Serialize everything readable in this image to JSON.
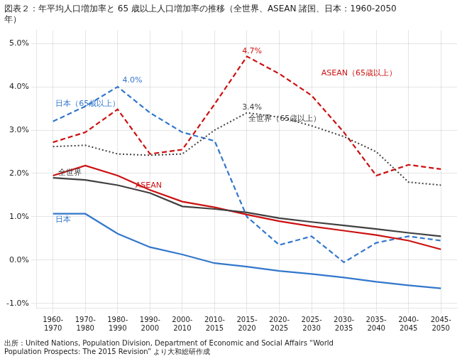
{
  "chart_data": {
    "type": "line",
    "title": [
      "図表２：年平均人口増加率と 65 歳以上人口増加率の推移（全世界、ASEAN 諸国、日本：1960-2050",
      "年）"
    ],
    "source": [
      "出所：United Nations, Population Division, Department of Economic and Social Affairs “World",
      "Population Prospects: The 2015 Revision” より大和総研作成"
    ],
    "categories": [
      [
        "1960-",
        "1970"
      ],
      [
        "1970-",
        "1980"
      ],
      [
        "1980-",
        "1990"
      ],
      [
        "1990-",
        "2000"
      ],
      [
        "2000-",
        "2010"
      ],
      [
        "2010-",
        "2015"
      ],
      [
        "2015-",
        "2020"
      ],
      [
        "2020-",
        "2025"
      ],
      [
        "2025-",
        "2030"
      ],
      [
        "2030-",
        "2035"
      ],
      [
        "2035-",
        "2040"
      ],
      [
        "2040-",
        "2045"
      ],
      [
        "2045-",
        "2050"
      ]
    ],
    "series": [
      {
        "name": "全世界",
        "color": "#404040",
        "line_style": "solid",
        "values": [
          1.9,
          1.85,
          1.73,
          1.55,
          1.24,
          1.18,
          1.1,
          0.97,
          0.88,
          0.8,
          0.72,
          0.63,
          0.55
        ]
      },
      {
        "name": "ASEAN",
        "color": "#cc1111",
        "line_style": "solid",
        "values": [
          1.95,
          2.18,
          1.95,
          1.62,
          1.35,
          1.22,
          1.05,
          0.9,
          0.78,
          0.68,
          0.58,
          0.45,
          0.25
        ]
      },
      {
        "name": "日本",
        "color": "#3377cc",
        "line_style": "solid",
        "values": [
          1.07,
          1.07,
          0.61,
          0.3,
          0.13,
          -0.07,
          -0.15,
          -0.25,
          -0.32,
          -0.4,
          -0.5,
          -0.58,
          -0.65
        ]
      },
      {
        "name": "全世界（65歳以上）",
        "color": "#404040",
        "line_style": "dotted",
        "values": [
          2.62,
          2.65,
          2.45,
          2.42,
          2.45,
          3.0,
          3.4,
          3.3,
          3.1,
          2.85,
          2.5,
          1.8,
          1.73
        ]
      },
      {
        "name": "ASEAN（65歳以上）",
        "color": "#cc1111",
        "line_style": "dashed",
        "values": [
          2.72,
          2.95,
          3.48,
          2.45,
          2.55,
          3.6,
          4.7,
          4.3,
          3.8,
          2.95,
          1.95,
          2.2,
          2.1
        ]
      },
      {
        "name": "日本（65歳以上）",
        "color": "#3377cc",
        "line_style": "dashed",
        "values": [
          3.2,
          3.55,
          4.0,
          3.4,
          2.95,
          2.75,
          1.0,
          0.35,
          0.55,
          -0.05,
          0.4,
          0.55,
          0.45
        ]
      }
    ],
    "annotations": [
      {
        "text": "全世界",
        "x": 0.15,
        "y": 1.97,
        "color": "#404040"
      },
      {
        "text": "ASEAN",
        "x": 2.55,
        "y": 1.68,
        "color": "#cc1111"
      },
      {
        "text": "日本",
        "x": 0.08,
        "y": 0.88,
        "color": "#3377cc"
      },
      {
        "text": "日本（65歳以上）",
        "x": 0.08,
        "y": 3.55,
        "color": "#3377cc"
      },
      {
        "text": "ASEAN（65歳以上）",
        "x": 8.3,
        "y": 4.27,
        "color": "#cc1111"
      },
      {
        "text": "全世界（65歳以上）",
        "x": 6.05,
        "y": 3.22,
        "color": "#404040"
      },
      {
        "text": "4.0%",
        "x": 2.15,
        "y": 4.1,
        "color": "#3377cc"
      },
      {
        "text": "4.7%",
        "x": 5.85,
        "y": 4.78,
        "color": "#cc1111"
      },
      {
        "text": "3.4%",
        "x": 5.85,
        "y": 3.48,
        "color": "#404040"
      }
    ],
    "ylim": [
      -1.1,
      5.3
    ],
    "yticks": [
      {
        "value": -1.0,
        "label": "-1.0%"
      },
      {
        "value": 0.0,
        "label": "0.0%"
      },
      {
        "value": 1.0,
        "label": "1.0%"
      },
      {
        "value": 2.0,
        "label": "2.0%"
      },
      {
        "value": 3.0,
        "label": "3.0%"
      },
      {
        "value": 4.0,
        "label": "4.0%"
      },
      {
        "value": 5.0,
        "label": "5.0%"
      }
    ],
    "grid": true,
    "legend": false
  }
}
